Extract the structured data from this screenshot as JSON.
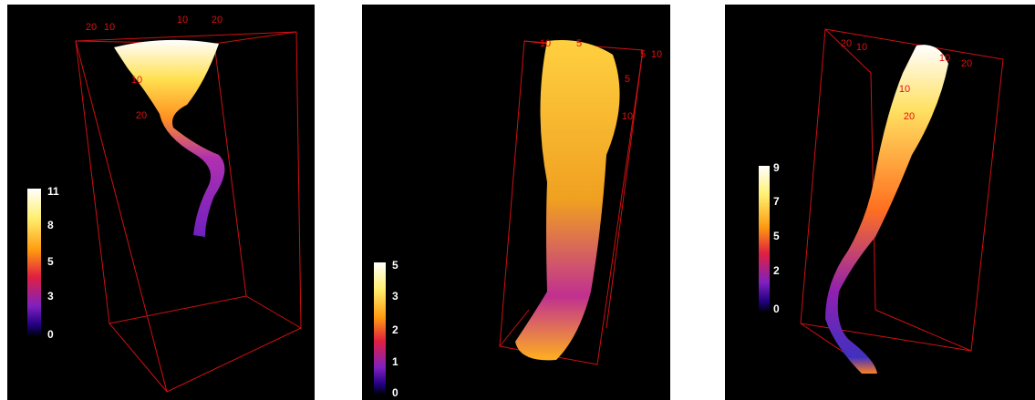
{
  "panels": [
    {
      "colorbar_labels": [
        "11",
        "8",
        "5",
        "3",
        "0"
      ],
      "axis_labels": [
        "20",
        "10",
        "10",
        "20",
        "10",
        "20"
      ]
    },
    {
      "colorbar_labels": [
        "5",
        "3",
        "2",
        "1",
        "0"
      ],
      "axis_labels": [
        "10",
        "5",
        "5",
        "10",
        "5",
        "10"
      ]
    },
    {
      "colorbar_labels": [
        "9",
        "7",
        "5",
        "2",
        "0"
      ],
      "axis_labels": [
        "20",
        "10",
        "10",
        "20",
        "10",
        "20"
      ]
    }
  ]
}
